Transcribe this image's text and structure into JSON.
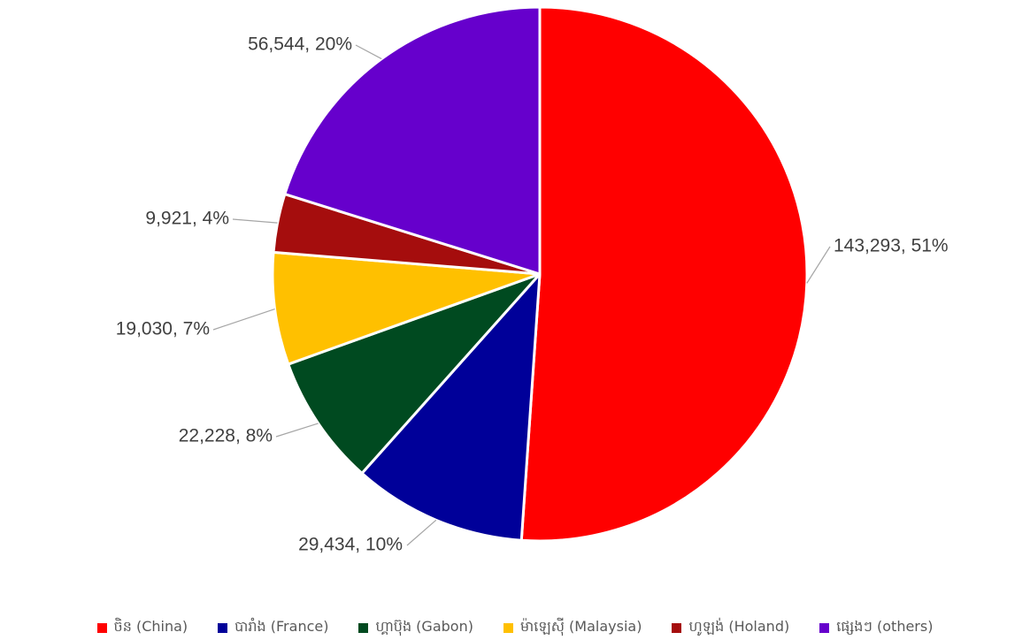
{
  "chart_data": {
    "type": "pie",
    "title": "",
    "categories": [
      "ចិន (China)",
      "បារាំង (France)",
      "ហ្គាប៊ុង (Gabon)",
      "ម៉ាឡេស៊ី (Malaysia)",
      "ហូឡង់ (Holand)",
      "ផ្សេងៗ (others)"
    ],
    "values": [
      143293,
      29434,
      22228,
      19030,
      9921,
      56544
    ],
    "percent_labels": [
      "51%",
      "10%",
      "8%",
      "7%",
      "4%",
      "20%"
    ],
    "data_labels": [
      "143,293, 51%",
      "29,434, 10%",
      "22,228, 8%",
      "19,030, 7%",
      "9,921, 4%",
      "56,544, 20%"
    ],
    "colors": [
      "#ff0000",
      "#000099",
      "#004a20",
      "#ffc000",
      "#a50d0d",
      "#6600cc"
    ],
    "start_angle_deg": 0,
    "direction": "clockwise",
    "legend_position": "bottom"
  }
}
